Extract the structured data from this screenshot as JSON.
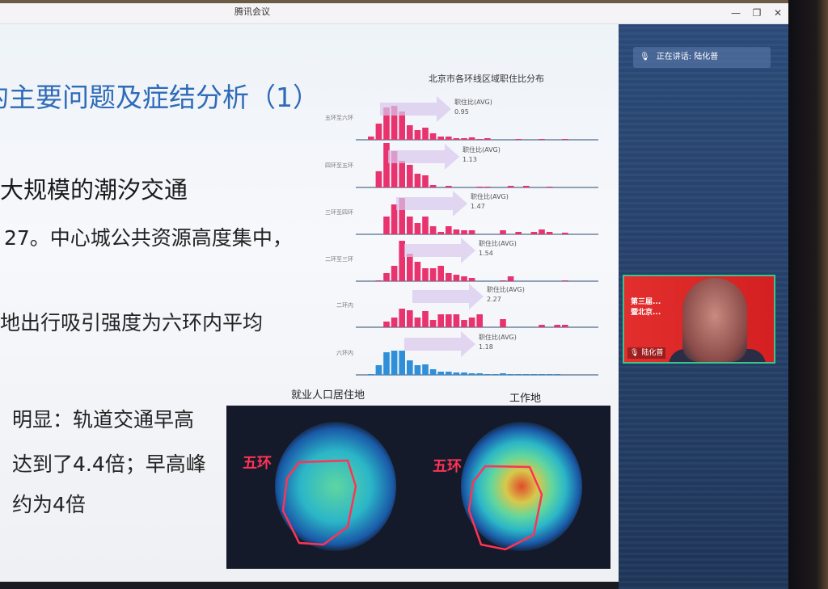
{
  "window": {
    "title": "腾讯会议",
    "minimize": "—",
    "restore": "❐",
    "close": "✕"
  },
  "speaker": {
    "label": "正在讲话: 陆化普",
    "icon": "microphone-icon"
  },
  "video": {
    "name": "陆化普",
    "banner_line1": "第三届...",
    "banner_line2": "暨北京..."
  },
  "slide": {
    "title": "的主要问题及症结分析（1）",
    "bullets": [
      "大规模的潮汐交通",
      "27。中心城公共资源高度集中，",
      "地出行吸引强度为六环内平均",
      "明显：轨道交通早高",
      "达到了4.4倍；早高峰",
      "约为4倍"
    ],
    "map_labels": {
      "left": "就业人口居住地",
      "right": "工作地",
      "ring": "五环"
    }
  },
  "chart_data": {
    "type": "bar",
    "title": "北京市各环线区域职住比分布",
    "xlabel": "",
    "ylabel": "",
    "series": [
      {
        "name": "五环至六环",
        "avg_label": "职住比(AVG)",
        "avg": "0.95",
        "color": "#e8336f",
        "values": [
          4,
          20,
          40,
          42,
          35,
          18,
          12,
          15,
          8,
          4,
          4,
          2,
          2,
          3,
          1,
          2,
          0,
          0,
          0,
          1,
          0,
          0,
          1,
          0,
          0,
          1
        ]
      },
      {
        "name": "四环至五环",
        "avg_label": "职住比(AVG)",
        "avg": "1.13",
        "color": "#e8336f",
        "values": [
          0,
          20,
          55,
          45,
          33,
          28,
          17,
          15,
          3,
          0,
          2,
          0,
          0,
          0,
          1,
          1,
          0,
          0,
          2,
          0,
          2,
          0,
          0,
          1,
          0,
          0
        ]
      },
      {
        "name": "三环至四环",
        "avg_label": "职住比(AVG)",
        "avg": "1.47",
        "color": "#e8336f",
        "values": [
          0,
          0,
          22,
          37,
          45,
          22,
          14,
          22,
          10,
          3,
          10,
          6,
          5,
          5,
          0,
          0,
          0,
          5,
          0,
          3,
          0,
          3,
          6,
          3,
          0,
          2
        ]
      },
      {
        "name": "二环至三环",
        "avg_label": "职住比(AVG)",
        "avg": "1.54",
        "color": "#e8336f",
        "values": [
          0,
          1,
          10,
          19,
          50,
          34,
          24,
          16,
          16,
          19,
          10,
          8,
          6,
          4,
          0,
          0,
          0,
          1,
          6,
          0,
          0,
          0,
          0,
          0,
          0,
          1
        ]
      },
      {
        "name": "二环内",
        "avg_label": "职住比(AVG)",
        "avg": "2.27",
        "color": "#e8336f",
        "values": [
          0,
          0,
          7,
          12,
          23,
          21,
          12,
          20,
          9,
          16,
          16,
          16,
          9,
          12,
          16,
          0,
          0,
          10,
          0,
          0,
          0,
          0,
          3,
          0,
          3,
          3
        ]
      },
      {
        "name": "六环内",
        "avg_label": "职住比(AVG)",
        "avg": "1.18",
        "color": "#2f8fd8",
        "values": [
          1,
          12,
          28,
          30,
          30,
          18,
          12,
          13,
          7,
          4,
          4,
          3,
          3,
          2,
          2,
          1,
          1,
          2,
          1,
          1,
          1,
          1,
          1,
          1,
          1,
          0
        ]
      }
    ]
  }
}
